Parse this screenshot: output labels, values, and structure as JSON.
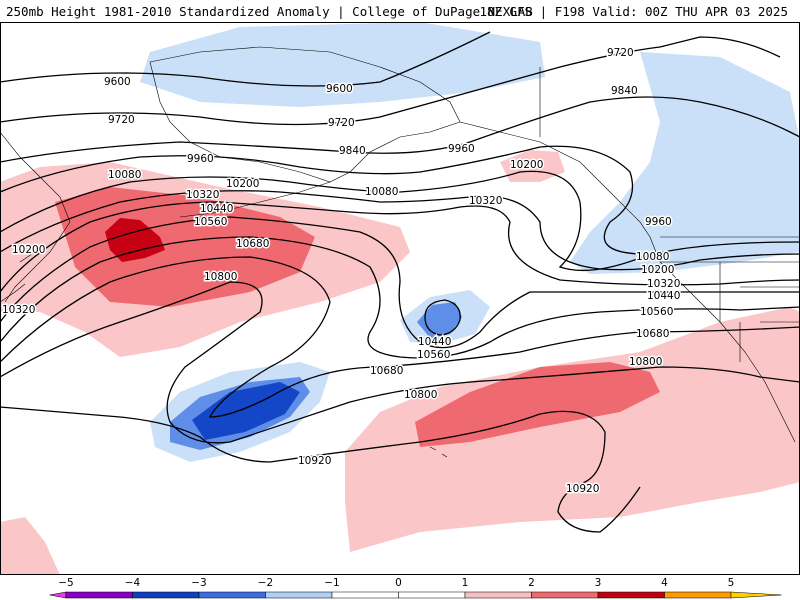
{
  "header": {
    "title_left": "250mb Height 1981-2010 Standardized Anomaly | College of DuPage NEXLAB",
    "title_right": "18Z GFS | F198 Valid: 00Z THU APR 03 2025"
  },
  "contour_labels": {
    "c1": "9600",
    "c2": "9600",
    "c3": "9720",
    "c4": "9720",
    "c5": "9720",
    "c6": "9840",
    "c7": "9840",
    "c8": "9960",
    "c9": "9960",
    "c10": "9960",
    "c11": "10080",
    "c12": "10080",
    "c13": "10080",
    "c14": "10200",
    "c15": "10200",
    "c16": "10200",
    "c17": "10200",
    "c18": "10320",
    "c19": "10320",
    "c20": "10320",
    "c21": "10320",
    "c22": "10440",
    "c23": "10440",
    "c24": "10440",
    "c25": "10560",
    "c26": "10560",
    "c27": "10560",
    "c28": "10680",
    "c29": "10680",
    "c30": "10680",
    "c31": "10800",
    "c32": "10800",
    "c33": "10800",
    "c34": "10920",
    "c35": "10920"
  },
  "colorbar": {
    "ticks": [
      "−5",
      "−4",
      "−3",
      "−2",
      "−1",
      "0",
      "1",
      "2",
      "3",
      "4",
      "5"
    ],
    "colors": [
      "#e040e0",
      "#8a00c8",
      "#1040c0",
      "#3a6ee0",
      "#aed0f5",
      "#ffffff",
      "#ffffff",
      "#f5c0c2",
      "#ee6a6e",
      "#c00010",
      "#ff9a00",
      "#ffd000"
    ]
  },
  "colors": {
    "anomaly_neg1": "#c9e0f8",
    "anomaly_neg2": "#5f8ee8",
    "anomaly_neg3": "#1446c8",
    "anomaly_pos1": "#fac6c8",
    "anomaly_pos2": "#ef6a70",
    "anomaly_pos3": "#c80014"
  }
}
